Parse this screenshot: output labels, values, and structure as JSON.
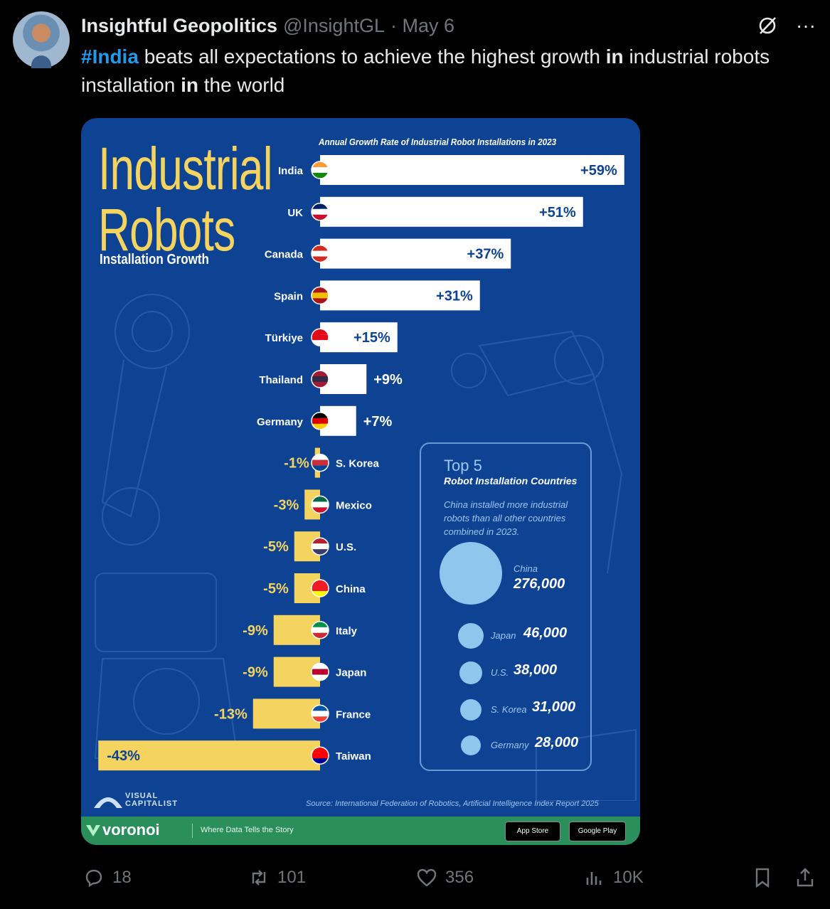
{
  "tweet": {
    "author": "Insightful Geopolitics",
    "handle": "@InsightGL",
    "date": "· May 6",
    "text_parts": [
      {
        "t": "#India",
        "style": "hashtag"
      },
      {
        "t": " beats all expectations to achieve the highest growth ",
        "style": "normal"
      },
      {
        "t": "in",
        "style": "bold"
      },
      {
        "t": " industrial robots installation ",
        "style": "normal"
      },
      {
        "t": "in",
        "style": "bold"
      },
      {
        "t": " the world",
        "style": "normal"
      }
    ],
    "icons": {
      "grok": "grok-slash-icon",
      "more": "more-dots-icon"
    }
  },
  "infographic": {
    "title_line1": "Industrial",
    "title_line2": "Robots",
    "subtitle": "Installation Growth",
    "chart_title": "Annual Growth Rate of Industrial Robot Installations in 2023",
    "source": "Source: International Federation of Robotics, Artificial Intelligence Index Report 2025",
    "brand": "VISUAL CAPITALIST",
    "footer_brand": "voronoi",
    "footer_tagline": "Where Data Tells the Story",
    "store_buttons": [
      "App Store",
      "Google Play"
    ],
    "colors": {
      "background": "#0e4394",
      "positive_bar": "#ffffff",
      "negative_bar": "#f4d35e",
      "title": "#f4d35e",
      "bubble": "#8ec6ee"
    },
    "top5": {
      "title": "Top 5",
      "subtitle": "Robot Installation Countries",
      "description": "China installed more industrial robots than all other countries combined in 2023.",
      "items": [
        {
          "country": "China",
          "value": "276,000",
          "n": 276000
        },
        {
          "country": "Japan",
          "value": "46,000",
          "n": 46000
        },
        {
          "country": "U.S.",
          "value": "38,000",
          "n": 38000
        },
        {
          "country": "S. Korea",
          "value": "31,000",
          "n": 31000
        },
        {
          "country": "Germany",
          "value": "28,000",
          "n": 28000
        }
      ]
    }
  },
  "chart_data": {
    "type": "bar",
    "orientation": "horizontal",
    "title": "Annual Growth Rate of Industrial Robot Installations in 2023",
    "categories": [
      "India",
      "UK",
      "Canada",
      "Spain",
      "Türkiye",
      "Thailand",
      "Germany",
      "S. Korea",
      "Mexico",
      "U.S.",
      "China",
      "Italy",
      "Japan",
      "France",
      "Taiwan"
    ],
    "values": [
      59,
      51,
      37,
      31,
      15,
      9,
      7,
      -1,
      -3,
      -5,
      -5,
      -9,
      -9,
      -13,
      -43
    ],
    "value_labels": [
      "+59%",
      "+51%",
      "+37%",
      "+31%",
      "+15%",
      "+9%",
      "+7%",
      "-1%",
      "-3%",
      "-5%",
      "-5%",
      "-9%",
      "-9%",
      "-13%",
      "-43%"
    ],
    "xlim": [
      -43,
      59
    ],
    "grid": false
  },
  "actions": {
    "replies": "18",
    "reposts": "101",
    "likes": "356",
    "views": "10K"
  }
}
